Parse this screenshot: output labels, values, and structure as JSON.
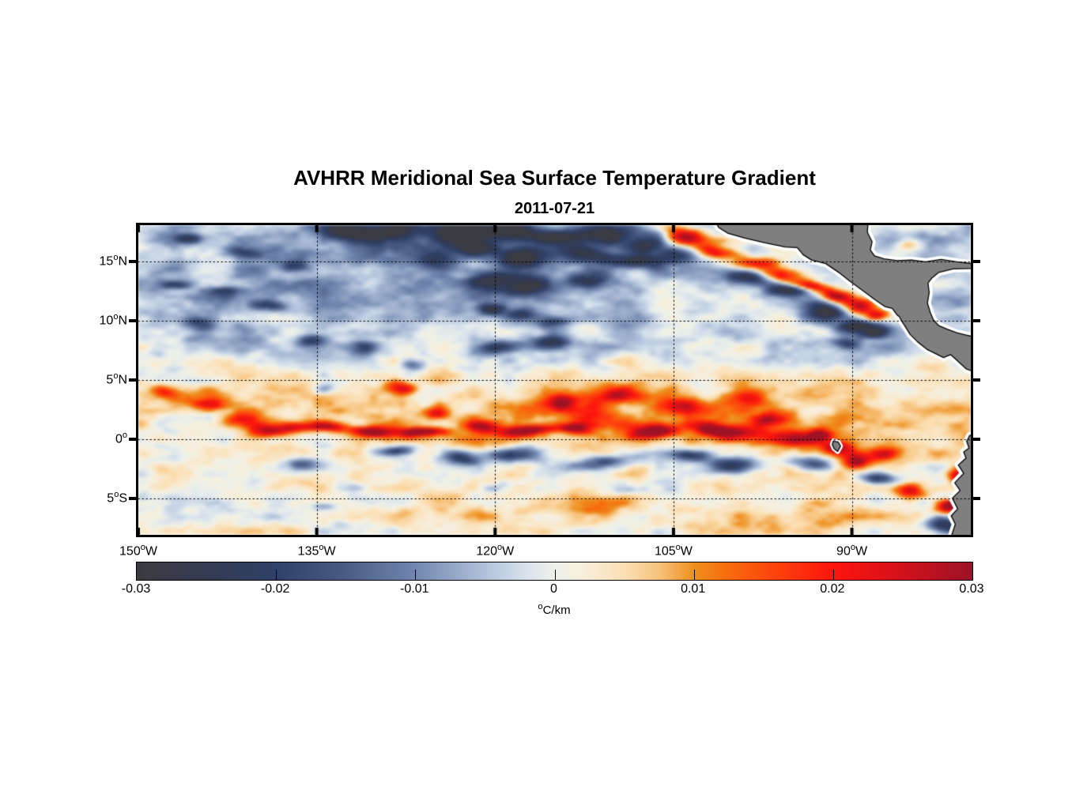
{
  "figure": {
    "title": "AVHRR Meridional Sea Surface Temperature Gradient",
    "subtitle": "2011-07-21"
  },
  "chart_data": {
    "type": "heatmap",
    "title": "AVHRR Meridional Sea Surface Temperature Gradient",
    "subtitle": "2011-07-21",
    "lon_range": [
      -150,
      -80
    ],
    "lat_range": [
      -8.1,
      18.1
    ],
    "grid": {
      "lats": [
        15,
        10,
        5,
        0,
        -5
      ],
      "lons": [
        -135,
        -120,
        -105,
        -90
      ],
      "style": "dotted-black"
    },
    "x_ticks": [
      {
        "num": "150",
        "deg": "o",
        "suffix": "W",
        "lon": -150
      },
      {
        "num": "135",
        "deg": "o",
        "suffix": "W",
        "lon": -135
      },
      {
        "num": "120",
        "deg": "o",
        "suffix": "W",
        "lon": -120
      },
      {
        "num": "105",
        "deg": "o",
        "suffix": "W",
        "lon": -105
      },
      {
        "num": "90",
        "deg": "o",
        "suffix": "W",
        "lon": -90
      }
    ],
    "y_ticks": [
      {
        "num": "15",
        "deg": "o",
        "suffix": "N",
        "lat": 15
      },
      {
        "num": "10",
        "deg": "o",
        "suffix": "N",
        "lat": 10
      },
      {
        "num": "5",
        "deg": "o",
        "suffix": "N",
        "lat": 5
      },
      {
        "num": "0",
        "deg": "o",
        "suffix": "",
        "lat": 0
      },
      {
        "num": "5",
        "deg": "o",
        "suffix": "S",
        "lat": -5
      }
    ],
    "colorbar": {
      "vmin": -0.03,
      "vmax": 0.03,
      "tick_labels": [
        "-0.03",
        "-0.02",
        "-0.01",
        "0",
        "0.01",
        "0.02",
        "0.03"
      ],
      "unit_deg": "o",
      "unit_text": "C/km",
      "stops": [
        [
          -0.03,
          "#3b3b41"
        ],
        [
          -0.025,
          "#333a52"
        ],
        [
          -0.02,
          "#2f4168"
        ],
        [
          -0.015,
          "#4a5c84"
        ],
        [
          -0.01,
          "#7187af"
        ],
        [
          -0.005,
          "#b0c1da"
        ],
        [
          -0.002,
          "#d9e3ed"
        ],
        [
          0.0,
          "#edf1ea"
        ],
        [
          0.002,
          "#f8efdc"
        ],
        [
          0.005,
          "#fbdfb3"
        ],
        [
          0.0075,
          "#f7c27b"
        ],
        [
          0.01,
          "#ee8f1d"
        ],
        [
          0.0125,
          "#f96b0e"
        ],
        [
          0.015,
          "#fc4c0c"
        ],
        [
          0.02,
          "#fd150d"
        ],
        [
          0.024,
          "#dc1219"
        ],
        [
          0.03,
          "#9c1226"
        ]
      ]
    },
    "land": {
      "fill": "#7f7f7f",
      "stroke": "#000000",
      "buffer_color": "#ffffff",
      "polygons": [
        {
          "name": "central-america",
          "buffer": 9,
          "pts": [
            [
              -101.8,
              19.0
            ],
            [
              -101.2,
              17.9
            ],
            [
              -100.4,
              17.4
            ],
            [
              -99.0,
              17.0
            ],
            [
              -97.3,
              16.6
            ],
            [
              -95.6,
              16.25
            ],
            [
              -94.6,
              16.2
            ],
            [
              -94.1,
              15.6
            ],
            [
              -93.4,
              15.15
            ],
            [
              -92.2,
              14.85
            ],
            [
              -91.1,
              14.1
            ],
            [
              -90.1,
              13.3
            ],
            [
              -89.0,
              12.5
            ],
            [
              -88.0,
              11.75
            ],
            [
              -87.2,
              11.2
            ],
            [
              -86.6,
              11.05
            ],
            [
              -86.2,
              10.5
            ],
            [
              -86.0,
              10.35
            ],
            [
              -85.85,
              10.05
            ],
            [
              -85.5,
              9.5
            ],
            [
              -85.1,
              8.85
            ],
            [
              -84.5,
              8.25
            ],
            [
              -83.7,
              7.6
            ],
            [
              -83.0,
              7.25
            ],
            [
              -82.3,
              6.9
            ],
            [
              -81.7,
              7.15
            ],
            [
              -81.1,
              6.6
            ],
            [
              -80.4,
              5.95
            ],
            [
              -79.5,
              5.6
            ],
            [
              -79.5,
              8.6
            ],
            [
              -80.4,
              8.8
            ],
            [
              -81.2,
              9.0
            ],
            [
              -82.0,
              9.3
            ],
            [
              -82.7,
              9.6
            ],
            [
              -83.15,
              10.1
            ],
            [
              -83.4,
              10.7
            ],
            [
              -83.65,
              11.5
            ],
            [
              -83.5,
              12.4
            ],
            [
              -83.6,
              13.2
            ],
            [
              -83.3,
              13.6
            ],
            [
              -82.7,
              14.1
            ],
            [
              -81.5,
              14.4
            ],
            [
              -79.5,
              14.45
            ],
            [
              -79.5,
              14.8
            ],
            [
              -81.2,
              15.0
            ],
            [
              -82.5,
              15.2
            ],
            [
              -83.8,
              15.0
            ],
            [
              -85.0,
              15.15
            ],
            [
              -86.2,
              15.1
            ],
            [
              -87.3,
              15.25
            ],
            [
              -88.1,
              15.5
            ],
            [
              -88.45,
              16.0
            ],
            [
              -88.3,
              16.7
            ],
            [
              -88.7,
              17.5
            ],
            [
              -88.6,
              19.0
            ]
          ]
        },
        {
          "name": "south-america",
          "buffer": 9,
          "pts": [
            [
              -79.3,
              0.6
            ],
            [
              -80.1,
              0.3
            ],
            [
              -80.35,
              -0.2
            ],
            [
              -80.15,
              -0.75
            ],
            [
              -80.6,
              -1.1
            ],
            [
              -80.4,
              -1.6
            ],
            [
              -81.05,
              -2.2
            ],
            [
              -80.6,
              -2.9
            ],
            [
              -81.35,
              -3.7
            ],
            [
              -80.9,
              -4.35
            ],
            [
              -81.55,
              -5.0
            ],
            [
              -81.1,
              -5.9
            ],
            [
              -81.65,
              -6.5
            ],
            [
              -81.3,
              -7.2
            ],
            [
              -81.6,
              -8.1
            ],
            [
              -81.5,
              -9.0
            ],
            [
              -79.3,
              -9.0
            ]
          ]
        },
        {
          "name": "galapagos",
          "buffer": 6,
          "pts": [
            [
              -91.55,
              -0.15
            ],
            [
              -91.15,
              -0.25
            ],
            [
              -90.95,
              -0.6
            ],
            [
              -91.2,
              -1.05
            ],
            [
              -91.5,
              -0.8
            ],
            [
              -91.65,
              -0.45
            ]
          ]
        }
      ]
    },
    "field": {
      "seed": 7,
      "warp": [
        0.55,
        0.45
      ],
      "octaves": [
        [
          3.2,
          1.3,
          0.0052
        ],
        [
          1.4,
          0.6,
          0.0028
        ],
        [
          0.6,
          0.3,
          0.0013
        ]
      ],
      "base": {
        "south": 0.002,
        "tropic": 0.0035,
        "north": -0.003
      },
      "blobs": [
        [
          -143.6,
          2.8,
          1.4,
          0.55,
          0.016
        ],
        [
          -141.3,
          1.6,
          1.6,
          0.5,
          0.02
        ],
        [
          -138.2,
          0.8,
          2.2,
          0.5,
          0.03
        ],
        [
          -134.5,
          0.9,
          1.6,
          0.45,
          0.022
        ],
        [
          -130.5,
          0.8,
          1.8,
          0.5,
          0.026
        ],
        [
          -128.3,
          4.2,
          1.1,
          0.75,
          0.021
        ],
        [
          -126.2,
          0.5,
          2.2,
          0.5,
          0.03
        ],
        [
          -124.3,
          2.5,
          1.0,
          0.55,
          0.022
        ],
        [
          -121.0,
          1.2,
          1.3,
          0.5,
          0.018
        ],
        [
          -117.3,
          0.7,
          2.2,
          0.55,
          0.028
        ],
        [
          -114.6,
          3.2,
          1.4,
          0.7,
          0.022
        ],
        [
          -113.2,
          0.9,
          1.4,
          0.5,
          0.026
        ],
        [
          -109.7,
          3.6,
          1.8,
          0.75,
          0.02
        ],
        [
          -107.0,
          0.6,
          1.8,
          0.5,
          0.029
        ],
        [
          -100.6,
          0.9,
          2.6,
          0.6,
          0.031
        ],
        [
          -97.0,
          2.0,
          1.4,
          0.6,
          0.022
        ],
        [
          -94.6,
          0.3,
          2.2,
          0.6,
          0.025
        ],
        [
          -92.6,
          0.6,
          1.0,
          0.5,
          0.028
        ],
        [
          -91.2,
          -0.5,
          1.6,
          0.6,
          0.022
        ],
        [
          -89.4,
          -1.7,
          1.2,
          0.65,
          0.03
        ],
        [
          -87.0,
          -1.1,
          1.2,
          0.55,
          0.02
        ],
        [
          -111.5,
          2.2,
          2.2,
          0.9,
          0.012
        ],
        [
          -104.5,
          2.8,
          1.8,
          0.8,
          0.014
        ],
        [
          -99.0,
          3.5,
          1.6,
          0.7,
          0.012
        ],
        [
          -147.5,
          3.9,
          1.1,
          0.6,
          0.01
        ],
        [
          -144.3,
          3.3,
          1.8,
          0.7,
          0.011
        ],
        [
          -118.0,
          2.2,
          16.0,
          1.9,
          0.006
        ],
        [
          -95.0,
          1.5,
          10.0,
          1.8,
          0.005
        ],
        [
          -104.2,
          17.1,
          1.6,
          0.7,
          0.03
        ],
        [
          -101.5,
          16.0,
          1.8,
          0.65,
          0.026
        ],
        [
          -98.6,
          14.9,
          2.0,
          0.7,
          0.03
        ],
        [
          -96.0,
          13.8,
          1.9,
          0.65,
          0.026
        ],
        [
          -93.6,
          12.9,
          1.7,
          0.6,
          0.03
        ],
        [
          -91.4,
          12.1,
          1.4,
          0.6,
          0.028
        ],
        [
          -89.7,
          11.4,
          1.2,
          0.55,
          0.03
        ],
        [
          -88.3,
          10.6,
          1.0,
          0.5,
          0.024
        ],
        [
          -85.2,
          16.4,
          1.0,
          0.45,
          0.013
        ],
        [
          -99.3,
          13.3,
          2.2,
          0.65,
          -0.024
        ],
        [
          -95.7,
          12.3,
          1.9,
          0.6,
          -0.026
        ],
        [
          -92.3,
          10.9,
          1.8,
          0.6,
          -0.024
        ],
        [
          -89.6,
          9.9,
          1.4,
          0.55,
          -0.026
        ],
        [
          -88.0,
          9.1,
          1.1,
          0.5,
          -0.022
        ],
        [
          -90.3,
          8.2,
          0.9,
          0.45,
          -0.018
        ],
        [
          -132.6,
          17.6,
          2.6,
          0.8,
          -0.026
        ],
        [
          -128.2,
          17.9,
          2.2,
          0.7,
          -0.024
        ],
        [
          -122.6,
          17.3,
          2.6,
          0.9,
          -0.028
        ],
        [
          -118.3,
          17.7,
          2.2,
          0.8,
          -0.026
        ],
        [
          -114.4,
          17.1,
          2.2,
          0.8,
          -0.024
        ],
        [
          -110.4,
          17.6,
          2.2,
          0.8,
          -0.026
        ],
        [
          -107.4,
          16.6,
          1.8,
          0.7,
          -0.023
        ],
        [
          -125.4,
          15.0,
          1.6,
          0.6,
          -0.018
        ],
        [
          -121.9,
          15.9,
          1.9,
          0.7,
          -0.022
        ],
        [
          -117.4,
          15.3,
          2.2,
          0.8,
          -0.026
        ],
        [
          -112.2,
          15.6,
          1.9,
          0.7,
          -0.022
        ],
        [
          -108.2,
          15.1,
          2.2,
          0.8,
          -0.026
        ],
        [
          -104.8,
          15.6,
          1.4,
          0.6,
          -0.02
        ],
        [
          -120.6,
          13.4,
          1.9,
          0.7,
          -0.023
        ],
        [
          -116.6,
          12.9,
          2.2,
          0.8,
          -0.026
        ],
        [
          -111.7,
          13.5,
          1.9,
          0.7,
          -0.022
        ],
        [
          -120.4,
          11.0,
          1.4,
          0.55,
          -0.02
        ],
        [
          -117.6,
          10.4,
          1.4,
          0.55,
          -0.022
        ],
        [
          -114.9,
          9.8,
          1.4,
          0.55,
          -0.02
        ],
        [
          -119.6,
          7.7,
          1.8,
          0.6,
          -0.022
        ],
        [
          -115.2,
          8.0,
          1.4,
          0.5,
          -0.018
        ],
        [
          -145.6,
          16.9,
          1.1,
          0.5,
          -0.016
        ],
        [
          -141.2,
          16.0,
          1.4,
          0.55,
          -0.018
        ],
        [
          -137.2,
          14.7,
          1.2,
          0.5,
          -0.016
        ],
        [
          -146.6,
          13.1,
          1.2,
          0.5,
          -0.016
        ],
        [
          -142.6,
          12.3,
          1.4,
          0.5,
          -0.014
        ],
        [
          -139.2,
          11.1,
          1.2,
          0.5,
          -0.014
        ],
        [
          -145.1,
          9.4,
          1.3,
          0.5,
          -0.016
        ],
        [
          -135.6,
          8.1,
          1.1,
          0.5,
          -0.015
        ],
        [
          -131.2,
          7.4,
          1.3,
          0.5,
          -0.017
        ],
        [
          -126.6,
          6.2,
          1.2,
          0.5,
          -0.017
        ],
        [
          -134.1,
          4.1,
          1.0,
          0.45,
          -0.014
        ],
        [
          -127.0,
          16.8,
          12.0,
          1.6,
          -0.009
        ],
        [
          -140.0,
          12.5,
          9.0,
          3.0,
          -0.004
        ],
        [
          -118.0,
          13.8,
          8.0,
          2.2,
          -0.006
        ],
        [
          -136.4,
          -1.9,
          1.4,
          0.5,
          -0.018
        ],
        [
          -128.6,
          -1.0,
          1.8,
          0.5,
          -0.019
        ],
        [
          -122.5,
          -1.6,
          1.8,
          0.55,
          -0.022
        ],
        [
          -118.0,
          -1.1,
          2.2,
          0.55,
          -0.021
        ],
        [
          -111.4,
          -2.0,
          2.2,
          0.6,
          -0.024
        ],
        [
          -104.1,
          -1.6,
          1.8,
          0.55,
          -0.022
        ],
        [
          -99.6,
          -2.4,
          2.2,
          0.65,
          -0.024
        ],
        [
          -93.6,
          -2.1,
          1.8,
          0.6,
          -0.022
        ],
        [
          -87.4,
          -3.4,
          1.8,
          0.65,
          -0.026
        ],
        [
          -82.3,
          -7.1,
          1.6,
          0.8,
          -0.027
        ],
        [
          -131.9,
          -3.9,
          2.2,
          0.55,
          -0.01
        ],
        [
          -120.2,
          -4.4,
          1.8,
          0.5,
          -0.008
        ],
        [
          -108.3,
          -4.1,
          1.8,
          0.5,
          -0.008
        ],
        [
          -134.3,
          -6.0,
          1.4,
          0.5,
          -0.011
        ],
        [
          -81.6,
          -5.5,
          1.1,
          0.6,
          0.03
        ],
        [
          -80.6,
          -2.9,
          0.9,
          0.7,
          0.026
        ],
        [
          -84.9,
          -4.4,
          1.3,
          0.55,
          0.02
        ],
        [
          -115.0,
          -6.2,
          18.0,
          1.8,
          0.0045
        ],
        [
          -90.0,
          -6.8,
          10.0,
          1.6,
          0.005
        ]
      ]
    }
  }
}
